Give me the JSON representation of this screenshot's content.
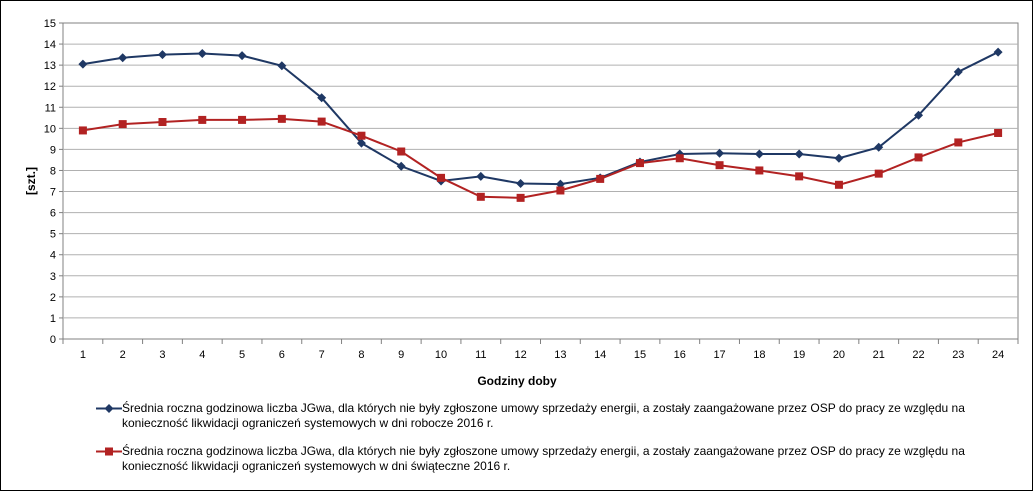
{
  "chart_data": {
    "type": "line",
    "xlabel": "Godziny doby",
    "ylabel": "[szt.]",
    "ylim": [
      0,
      15
    ],
    "yticks": [
      "0",
      "1",
      "2",
      "3",
      "4",
      "5",
      "6",
      "7",
      "8",
      "9",
      "10",
      "11",
      "12",
      "13",
      "14",
      "15"
    ],
    "categories": [
      "1",
      "2",
      "3",
      "4",
      "5",
      "6",
      "7",
      "8",
      "9",
      "10",
      "11",
      "12",
      "13",
      "14",
      "15",
      "16",
      "17",
      "18",
      "19",
      "20",
      "21",
      "22",
      "23",
      "24"
    ],
    "grid": "horizontal",
    "legend_position": "bottom",
    "series": [
      {
        "name": "Średnia roczna godzinowa liczba JGwa, dla których nie były zgłoszone umowy sprzedaży energii, a zostały zaangażowane przez OSP do pracy ze względu na konieczność likwidacji ograniczeń systemowych w dni robocze 2016 r.",
        "color": "#1F3864",
        "marker": "diamond",
        "values": [
          13.05,
          13.35,
          13.5,
          13.55,
          13.45,
          12.97,
          11.45,
          9.3,
          8.2,
          7.5,
          7.72,
          7.38,
          7.35,
          7.65,
          8.4,
          8.78,
          8.82,
          8.78,
          8.78,
          8.58,
          9.1,
          10.62,
          12.68,
          13.62
        ]
      },
      {
        "name": "Średnia roczna godzinowa liczba JGwa, dla których nie były zgłoszone umowy sprzedaży energii, a zostały zaangażowane przez OSP do pracy ze względu na konieczność likwidacji ograniczeń systemowych w dni świąteczne 2016 r.",
        "color": "#B22222",
        "marker": "square",
        "values": [
          9.9,
          10.2,
          10.3,
          10.4,
          10.4,
          10.45,
          10.32,
          9.65,
          8.9,
          7.65,
          6.75,
          6.7,
          7.05,
          7.6,
          8.35,
          8.58,
          8.25,
          8.0,
          7.72,
          7.32,
          7.85,
          8.62,
          9.33,
          9.78
        ]
      }
    ]
  }
}
